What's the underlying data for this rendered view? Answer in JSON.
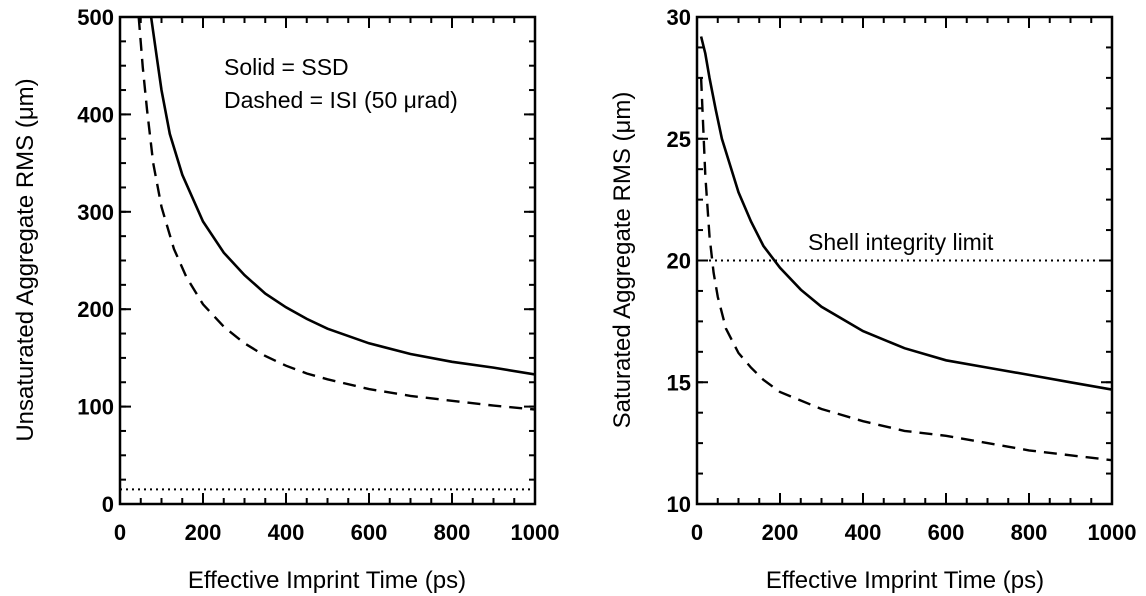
{
  "chart_data": [
    {
      "type": "line",
      "xlabel": "Effective Imprint Time (ps)",
      "ylabel": "Unsaturated Aggregate RMS (μm)",
      "xlim": [
        0,
        1000
      ],
      "ylim": [
        0,
        500
      ],
      "xticks": [
        0,
        200,
        400,
        600,
        800,
        1000
      ],
      "yticks": [
        0,
        100,
        200,
        300,
        400,
        500
      ],
      "annotations": [
        "Solid = SSD",
        "Dashed = ISI (50 μrad)"
      ],
      "series": [
        {
          "name": "SSD",
          "style": "solid",
          "x": [
            75,
            90,
            100,
            120,
            150,
            200,
            250,
            300,
            350,
            400,
            450,
            500,
            600,
            700,
            800,
            900,
            1000
          ],
          "y": [
            500,
            455,
            425,
            380,
            338,
            290,
            258,
            235,
            216,
            202,
            190,
            180,
            165,
            154,
            146,
            140,
            133
          ]
        },
        {
          "name": "ISI (50 μrad)",
          "style": "dashed",
          "x": [
            45,
            55,
            65,
            80,
            100,
            130,
            160,
            200,
            250,
            300,
            350,
            400,
            450,
            500,
            600,
            700,
            800,
            900,
            1000
          ],
          "y": [
            500,
            448,
            405,
            350,
            305,
            262,
            233,
            205,
            182,
            165,
            152,
            142,
            134,
            128,
            118,
            111,
            106,
            101,
            97
          ]
        },
        {
          "style": "dotted",
          "x": [
            0,
            1000
          ],
          "y": [
            15,
            15
          ]
        }
      ]
    },
    {
      "type": "line",
      "xlabel": "Effective Imprint Time (ps)",
      "ylabel": "Saturated Aggregate RMS (μm)",
      "xlim": [
        0,
        1000
      ],
      "ylim": [
        10,
        30
      ],
      "xticks": [
        0,
        200,
        400,
        600,
        800,
        1000
      ],
      "yticks": [
        10,
        15,
        20,
        25,
        30
      ],
      "annotations": [
        "Shell integrity limit"
      ],
      "series": [
        {
          "name": "SSD",
          "style": "solid",
          "x": [
            10,
            20,
            30,
            45,
            60,
            80,
            100,
            130,
            160,
            200,
            250,
            300,
            400,
            500,
            600,
            700,
            800,
            900,
            1000
          ],
          "y": [
            29.2,
            28.5,
            27.5,
            26.2,
            25.0,
            23.9,
            22.8,
            21.6,
            20.6,
            19.7,
            18.8,
            18.1,
            17.1,
            16.4,
            15.9,
            15.6,
            15.3,
            15.0,
            14.7
          ]
        },
        {
          "name": "ISI (50 μrad)",
          "style": "dashed",
          "x": [
            10,
            15,
            20,
            30,
            40,
            50,
            70,
            100,
            130,
            160,
            200,
            300,
            400,
            500,
            600,
            700,
            800,
            900,
            1000
          ],
          "y": [
            27.5,
            25.5,
            23.5,
            21.0,
            19.5,
            18.5,
            17.2,
            16.2,
            15.6,
            15.1,
            14.6,
            13.9,
            13.4,
            13.0,
            12.8,
            12.5,
            12.2,
            12.0,
            11.8
          ]
        },
        {
          "name": "Shell integrity limit",
          "style": "dotted",
          "x": [
            0,
            1000
          ],
          "y": [
            20,
            20
          ]
        }
      ]
    }
  ]
}
